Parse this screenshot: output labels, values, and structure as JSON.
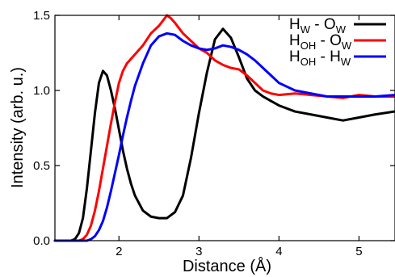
{
  "chart_data": {
    "type": "line",
    "xlabel": "Distance (Å)",
    "ylabel": "Intensity (arb. u.)",
    "xlim": [
      1.2,
      5.45
    ],
    "ylim": [
      0.0,
      1.5
    ],
    "x_ticks": [
      2,
      3,
      4,
      5
    ],
    "x_tick_labels": [
      "2",
      "3",
      "4",
      "5"
    ],
    "y_ticks": [
      0.0,
      0.5,
      1.0,
      1.5
    ],
    "y_tick_labels": [
      "0.0",
      "0.5",
      "1.0",
      "1.5"
    ],
    "grid": false,
    "legend_placement": "top-right",
    "series": [
      {
        "name": "HW - OW",
        "label_main": [
          "H",
          "O"
        ],
        "label_sub": [
          "W",
          "W"
        ],
        "color": "#000000",
        "points": [
          [
            1.2,
            0.0
          ],
          [
            1.4,
            0.0
          ],
          [
            1.45,
            0.01
          ],
          [
            1.5,
            0.05
          ],
          [
            1.55,
            0.15
          ],
          [
            1.6,
            0.35
          ],
          [
            1.65,
            0.6
          ],
          [
            1.7,
            0.85
          ],
          [
            1.75,
            1.05
          ],
          [
            1.8,
            1.13
          ],
          [
            1.85,
            1.1
          ],
          [
            1.9,
            1.0
          ],
          [
            1.95,
            0.88
          ],
          [
            2.0,
            0.74
          ],
          [
            2.05,
            0.6
          ],
          [
            2.1,
            0.48
          ],
          [
            2.15,
            0.38
          ],
          [
            2.2,
            0.3
          ],
          [
            2.3,
            0.2
          ],
          [
            2.4,
            0.16
          ],
          [
            2.5,
            0.15
          ],
          [
            2.6,
            0.15
          ],
          [
            2.7,
            0.19
          ],
          [
            2.8,
            0.3
          ],
          [
            2.9,
            0.55
          ],
          [
            3.0,
            0.85
          ],
          [
            3.1,
            1.12
          ],
          [
            3.2,
            1.34
          ],
          [
            3.3,
            1.41
          ],
          [
            3.4,
            1.35
          ],
          [
            3.5,
            1.22
          ],
          [
            3.6,
            1.08
          ],
          [
            3.7,
            1.0
          ],
          [
            3.8,
            0.96
          ],
          [
            3.9,
            0.93
          ],
          [
            4.0,
            0.9
          ],
          [
            4.2,
            0.86
          ],
          [
            4.4,
            0.84
          ],
          [
            4.6,
            0.82
          ],
          [
            4.8,
            0.8
          ],
          [
            5.0,
            0.82
          ],
          [
            5.2,
            0.84
          ],
          [
            5.45,
            0.86
          ]
        ]
      },
      {
        "name": "HOH - OW",
        "label_main": [
          "H",
          "O"
        ],
        "label_sub": [
          "OH",
          "W"
        ],
        "color": "#ff0000",
        "points": [
          [
            1.2,
            0.0
          ],
          [
            1.5,
            0.0
          ],
          [
            1.55,
            0.01
          ],
          [
            1.6,
            0.04
          ],
          [
            1.65,
            0.1
          ],
          [
            1.7,
            0.2
          ],
          [
            1.75,
            0.33
          ],
          [
            1.8,
            0.48
          ],
          [
            1.85,
            0.63
          ],
          [
            1.9,
            0.78
          ],
          [
            1.95,
            0.92
          ],
          [
            2.0,
            1.05
          ],
          [
            2.05,
            1.13
          ],
          [
            2.1,
            1.18
          ],
          [
            2.2,
            1.24
          ],
          [
            2.3,
            1.3
          ],
          [
            2.4,
            1.38
          ],
          [
            2.5,
            1.43
          ],
          [
            2.6,
            1.5
          ],
          [
            2.65,
            1.48
          ],
          [
            2.7,
            1.45
          ],
          [
            2.8,
            1.38
          ],
          [
            2.9,
            1.33
          ],
          [
            3.0,
            1.28
          ],
          [
            3.1,
            1.25
          ],
          [
            3.2,
            1.2
          ],
          [
            3.3,
            1.17
          ],
          [
            3.4,
            1.15
          ],
          [
            3.5,
            1.14
          ],
          [
            3.6,
            1.1
          ],
          [
            3.7,
            1.05
          ],
          [
            3.8,
            1.0
          ],
          [
            3.9,
            0.98
          ],
          [
            4.0,
            0.97
          ],
          [
            4.2,
            0.98
          ],
          [
            4.4,
            0.97
          ],
          [
            4.6,
            0.96
          ],
          [
            4.8,
            0.95
          ],
          [
            5.0,
            0.97
          ],
          [
            5.2,
            0.96
          ],
          [
            5.45,
            0.96
          ]
        ]
      },
      {
        "name": "HOH - HW",
        "label_main": [
          "H",
          "H"
        ],
        "label_sub": [
          "OH",
          "W"
        ],
        "color": "#0000ff",
        "points": [
          [
            1.2,
            0.0
          ],
          [
            1.6,
            0.0
          ],
          [
            1.65,
            0.01
          ],
          [
            1.7,
            0.03
          ],
          [
            1.75,
            0.07
          ],
          [
            1.8,
            0.13
          ],
          [
            1.85,
            0.22
          ],
          [
            1.9,
            0.33
          ],
          [
            1.95,
            0.45
          ],
          [
            2.0,
            0.57
          ],
          [
            2.05,
            0.7
          ],
          [
            2.1,
            0.82
          ],
          [
            2.15,
            0.93
          ],
          [
            2.2,
            1.03
          ],
          [
            2.3,
            1.18
          ],
          [
            2.4,
            1.3
          ],
          [
            2.5,
            1.36
          ],
          [
            2.6,
            1.38
          ],
          [
            2.7,
            1.37
          ],
          [
            2.8,
            1.33
          ],
          [
            2.9,
            1.3
          ],
          [
            3.0,
            1.28
          ],
          [
            3.1,
            1.27
          ],
          [
            3.2,
            1.28
          ],
          [
            3.3,
            1.3
          ],
          [
            3.4,
            1.29
          ],
          [
            3.5,
            1.27
          ],
          [
            3.6,
            1.24
          ],
          [
            3.7,
            1.2
          ],
          [
            3.8,
            1.15
          ],
          [
            3.9,
            1.1
          ],
          [
            4.0,
            1.05
          ],
          [
            4.2,
            1.0
          ],
          [
            4.4,
            0.98
          ],
          [
            4.6,
            0.96
          ],
          [
            4.8,
            0.96
          ],
          [
            5.0,
            0.96
          ],
          [
            5.2,
            0.96
          ],
          [
            5.45,
            0.97
          ]
        ]
      }
    ]
  }
}
